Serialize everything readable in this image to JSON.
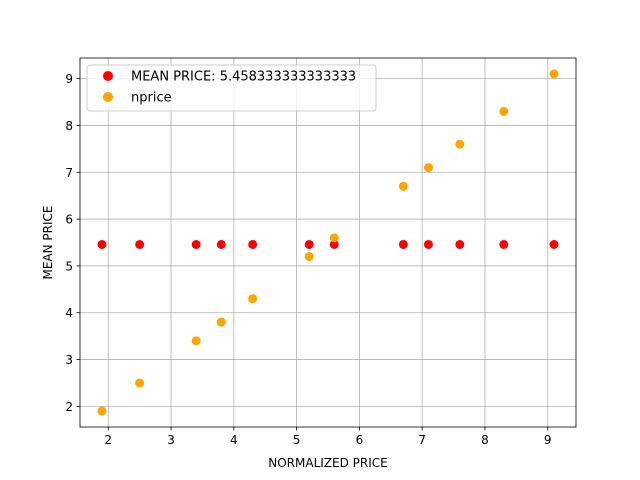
{
  "chart_data": {
    "type": "scatter",
    "xlabel": "NORMALIZED PRICE",
    "ylabel": "MEAN PRICE",
    "xlim": [
      1.55,
      9.45
    ],
    "ylim": [
      1.56,
      9.44
    ],
    "xticks": [
      2,
      3,
      4,
      5,
      6,
      7,
      8,
      9
    ],
    "yticks": [
      2,
      3,
      4,
      5,
      6,
      7,
      8,
      9
    ],
    "grid": true,
    "legend_position": "top-left",
    "series": [
      {
        "name": "MEAN PRICE: 5.458333333333333",
        "color": "#ff0000",
        "x": [
          1.9,
          2.5,
          3.4,
          3.8,
          4.3,
          5.2,
          5.6,
          6.7,
          7.1,
          7.6,
          8.3,
          9.1
        ],
        "y": [
          5.458333333333333,
          5.458333333333333,
          5.458333333333333,
          5.458333333333333,
          5.458333333333333,
          5.458333333333333,
          5.458333333333333,
          5.458333333333333,
          5.458333333333333,
          5.458333333333333,
          5.458333333333333,
          5.458333333333333
        ]
      },
      {
        "name": "nprice",
        "color": "#ffa500",
        "x": [
          1.9,
          2.5,
          3.4,
          3.8,
          4.3,
          5.2,
          5.6,
          6.7,
          7.1,
          7.6,
          8.3,
          9.1
        ],
        "y": [
          1.9,
          2.5,
          3.4,
          3.8,
          4.3,
          5.2,
          5.6,
          6.7,
          7.1,
          7.6,
          8.3,
          9.1
        ]
      }
    ]
  }
}
